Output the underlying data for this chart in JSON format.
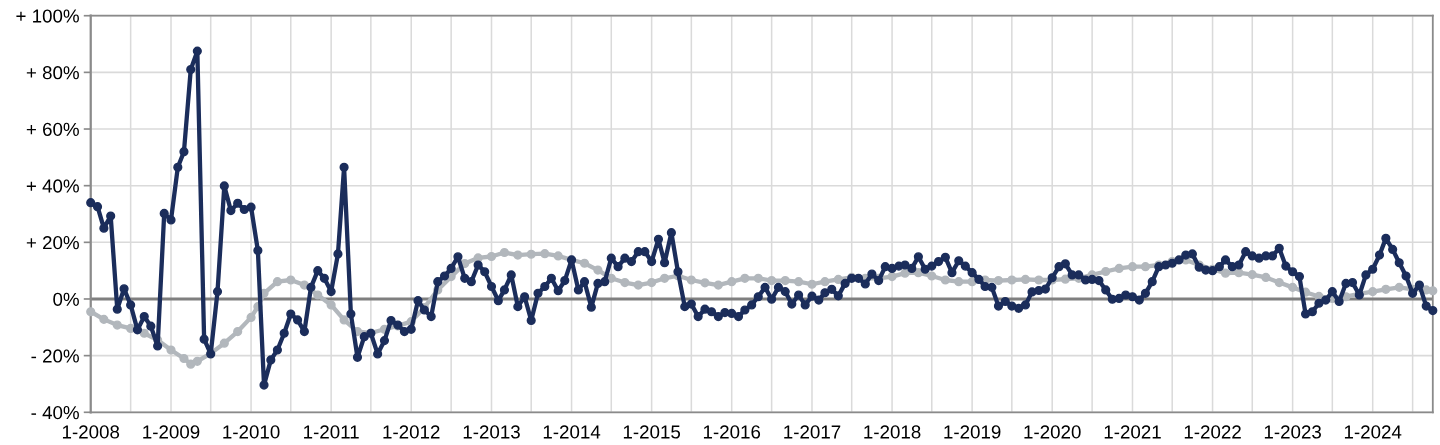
{
  "chart_data": {
    "type": "line",
    "x": [
      "2008-01",
      "2008-02",
      "2008-03",
      "2008-04",
      "2008-05",
      "2008-06",
      "2008-07",
      "2008-08",
      "2008-09",
      "2008-10",
      "2008-11",
      "2008-12",
      "2009-01",
      "2009-02",
      "2009-03",
      "2009-04",
      "2009-05",
      "2009-06",
      "2009-07",
      "2009-08",
      "2009-09",
      "2009-10",
      "2009-11",
      "2009-12",
      "2010-01",
      "2010-02",
      "2010-03",
      "2010-04",
      "2010-05",
      "2010-06",
      "2010-07",
      "2010-08",
      "2010-09",
      "2010-10",
      "2010-11",
      "2010-12",
      "2011-01",
      "2011-02",
      "2011-03",
      "2011-04",
      "2011-05",
      "2011-06",
      "2011-07",
      "2011-08",
      "2011-09",
      "2011-10",
      "2011-11",
      "2011-12",
      "2012-01",
      "2012-02",
      "2012-03",
      "2012-04",
      "2012-05",
      "2012-06",
      "2012-07",
      "2012-08",
      "2012-09",
      "2012-10",
      "2012-11",
      "2012-12",
      "2013-01",
      "2013-02",
      "2013-03",
      "2013-04",
      "2013-05",
      "2013-06",
      "2013-07",
      "2013-08",
      "2013-09",
      "2013-10",
      "2013-11",
      "2013-12",
      "2014-01",
      "2014-02",
      "2014-03",
      "2014-04",
      "2014-05",
      "2014-06",
      "2014-07",
      "2014-08",
      "2014-09",
      "2014-10",
      "2014-11",
      "2014-12",
      "2015-01",
      "2015-02",
      "2015-03",
      "2015-04",
      "2015-05",
      "2015-06",
      "2015-07",
      "2015-08",
      "2015-09",
      "2015-10",
      "2015-11",
      "2015-12",
      "2016-01",
      "2016-02",
      "2016-03",
      "2016-04",
      "2016-05",
      "2016-06",
      "2016-07",
      "2016-08",
      "2016-09",
      "2016-10",
      "2016-11",
      "2016-12",
      "2017-01",
      "2017-02",
      "2017-03",
      "2017-04",
      "2017-05",
      "2017-06",
      "2017-07",
      "2017-08",
      "2017-09",
      "2017-10",
      "2017-11",
      "2017-12",
      "2018-01",
      "2018-02",
      "2018-03",
      "2018-04",
      "2018-05",
      "2018-06",
      "2018-07",
      "2018-08",
      "2018-09",
      "2018-10",
      "2018-11",
      "2018-12",
      "2019-01",
      "2019-02",
      "2019-03",
      "2019-04",
      "2019-05",
      "2019-06",
      "2019-07",
      "2019-08",
      "2019-09",
      "2019-10",
      "2019-11",
      "2019-12",
      "2020-01",
      "2020-02",
      "2020-03",
      "2020-04",
      "2020-05",
      "2020-06",
      "2020-07",
      "2020-08",
      "2020-09",
      "2020-10",
      "2020-11",
      "2020-12",
      "2021-01",
      "2021-02",
      "2021-03",
      "2021-04",
      "2021-05",
      "2021-06",
      "2021-07",
      "2021-08",
      "2021-09",
      "2021-10",
      "2021-11",
      "2021-12",
      "2022-01",
      "2022-02",
      "2022-03",
      "2022-04",
      "2022-05",
      "2022-06",
      "2022-07",
      "2022-08",
      "2022-09",
      "2022-10",
      "2022-11",
      "2022-12",
      "2023-01",
      "2023-02",
      "2023-03",
      "2023-04",
      "2023-05",
      "2023-06",
      "2023-07",
      "2023-08",
      "2023-09",
      "2023-10",
      "2023-11",
      "2023-12",
      "2024-01",
      "2024-02",
      "2024-03",
      "2024-04",
      "2024-05",
      "2024-06",
      "2024-07",
      "2024-08",
      "2024-09",
      "2024-10"
    ],
    "series": [
      {
        "color": "#b2b7bc",
        "x": [
          "2008-01",
          "2008-03",
          "2008-05",
          "2008-07",
          "2008-09",
          "2008-11",
          "2009-01",
          "2009-03",
          "2009-04",
          "2009-05",
          "2009-07",
          "2009-09",
          "2009-11",
          "2010-01",
          "2010-02",
          "2010-03",
          "2010-05",
          "2010-07",
          "2010-09",
          "2010-11",
          "2011-01",
          "2011-03",
          "2011-05",
          "2011-07",
          "2011-09",
          "2011-11",
          "2012-01",
          "2012-03",
          "2012-05",
          "2012-07",
          "2012-09",
          "2012-11",
          "2013-01",
          "2013-03",
          "2013-05",
          "2013-07",
          "2013-09",
          "2013-11",
          "2014-01",
          "2014-03",
          "2014-05",
          "2014-07",
          "2014-09",
          "2014-11",
          "2015-01",
          "2015-03",
          "2015-05",
          "2015-07",
          "2015-09",
          "2015-11",
          "2016-01",
          "2016-03",
          "2016-05",
          "2016-07",
          "2016-09",
          "2016-11",
          "2017-01",
          "2017-03",
          "2017-05",
          "2017-07",
          "2017-09",
          "2017-11",
          "2018-01",
          "2018-03",
          "2018-05",
          "2018-07",
          "2018-09",
          "2018-11",
          "2019-01",
          "2019-03",
          "2019-05",
          "2019-07",
          "2019-09",
          "2019-11",
          "2020-01",
          "2020-03",
          "2020-05",
          "2020-07",
          "2020-09",
          "2020-11",
          "2021-01",
          "2021-03",
          "2021-05",
          "2021-07",
          "2021-09",
          "2021-11",
          "2022-01",
          "2022-03",
          "2022-05",
          "2022-07",
          "2022-09",
          "2022-11",
          "2023-01",
          "2023-03",
          "2023-05",
          "2023-07",
          "2023-09",
          "2023-11",
          "2024-01",
          "2024-03",
          "2024-05",
          "2024-07",
          "2024-09",
          "2024-10"
        ],
        "values": [
          -4.5,
          -7.2,
          -9.2,
          -10.4,
          -12.1,
          -14.5,
          -18,
          -21,
          -23,
          -22,
          -19.2,
          -15.6,
          -11.5,
          -6.5,
          -2.7,
          2.0,
          6.1,
          6.7,
          4.9,
          1.4,
          -2.1,
          -7.4,
          -11.5,
          -12,
          -10.7,
          -9.5,
          -8.0,
          -3.0,
          3.2,
          7.9,
          12.5,
          14.5,
          15.0,
          16.4,
          15.5,
          15.8,
          16.0,
          15.2,
          13.8,
          12.6,
          10.2,
          7.3,
          5.8,
          4.9,
          5.8,
          7.3,
          8.2,
          6.7,
          5.7,
          4.9,
          6.1,
          7.3,
          7.3,
          6.5,
          6.5,
          6.1,
          5.2,
          6.1,
          6.9,
          7.6,
          7.3,
          7.3,
          7.9,
          9.1,
          9.3,
          8.1,
          6.7,
          6.1,
          6.1,
          6.7,
          6.5,
          6.7,
          6.9,
          6.7,
          6.7,
          7.0,
          7.3,
          8.5,
          9.7,
          10.8,
          11.4,
          11.4,
          12.0,
          13.2,
          13.8,
          12.0,
          10.5,
          9.1,
          9.3,
          8.6,
          7.6,
          5.8,
          4.1,
          2.4,
          0.9,
          0.2,
          0.8,
          1.8,
          2.6,
          3.4,
          4.1,
          3.4,
          3.2,
          2.9
        ]
      },
      {
        "color": "#1b2d5b",
        "values": [
          34.0,
          32.6,
          25.0,
          29.3,
          -3.6,
          3.6,
          -2.1,
          -10.9,
          -6.2,
          -9.6,
          -16.6,
          30.2,
          27.9,
          46.5,
          52.0,
          81.0,
          87.5,
          -14.2,
          -19.4,
          2.6,
          39.9,
          31.2,
          33.8,
          31.6,
          32.4,
          17.1,
          -30.4,
          -21.5,
          -18.0,
          -12.1,
          -5.3,
          -7.4,
          -11.5,
          4.1,
          10.0,
          7.3,
          2.6,
          15.9,
          46.5,
          -5.3,
          -20.6,
          -13.3,
          -12.1,
          -19.4,
          -14.7,
          -7.6,
          -9.2,
          -11.5,
          -10.7,
          -0.6,
          -3.9,
          -6.2,
          6.1,
          8.1,
          10.8,
          14.9,
          7.3,
          6.1,
          12.0,
          9.6,
          4.4,
          -0.6,
          3.2,
          8.5,
          -2.7,
          0.8,
          -7.6,
          2.0,
          4.4,
          7.3,
          2.9,
          6.5,
          13.8,
          3.2,
          6.1,
          -2.9,
          5.5,
          6.1,
          14.4,
          11.4,
          14.4,
          13.2,
          16.7,
          16.7,
          13.2,
          21.1,
          12.8,
          23.4,
          9.6,
          -2.7,
          -1.8,
          -6.2,
          -3.6,
          -4.5,
          -6.2,
          -4.8,
          -5.1,
          -6.2,
          -3.9,
          -2.1,
          0.8,
          4.1,
          -0.1,
          4.1,
          2.6,
          -1.8,
          1.4,
          -2.1,
          1.0,
          -0.4,
          2.2,
          3.4,
          1.1,
          5.5,
          7.3,
          7.3,
          5.3,
          8.8,
          6.5,
          11.4,
          10.8,
          11.6,
          12.0,
          10.8,
          14.9,
          10.5,
          11.6,
          13.2,
          14.7,
          9.3,
          13.5,
          11.6,
          9.3,
          6.9,
          4.4,
          4.1,
          -2.5,
          -0.9,
          -2.5,
          -3.3,
          -2.1,
          2.5,
          3.0,
          3.5,
          7.5,
          11.4,
          12.4,
          8.5,
          8.5,
          6.7,
          6.9,
          6.5,
          3.2,
          -0.1,
          0.2,
          1.4,
          0.8,
          -0.4,
          2.0,
          6.1,
          11.4,
          12.0,
          12.6,
          13.8,
          15.5,
          15.9,
          11.2,
          10.2,
          10.0,
          11.4,
          13.8,
          11.4,
          12.0,
          16.7,
          15.2,
          14.4,
          15.2,
          15.2,
          17.9,
          11.6,
          9.6,
          7.9,
          -5.3,
          -4.5,
          -1.5,
          -0.4,
          2.6,
          -0.9,
          5.5,
          5.8,
          1.4,
          8.5,
          10.5,
          15.5,
          21.4,
          17.5,
          12.8,
          8.1,
          2.0,
          4.9,
          -2.5,
          -4.1
        ]
      }
    ],
    "xlim": [
      "2008-01",
      "2024-10"
    ],
    "xticks": [
      {
        "value": "2008-01",
        "label": "1-2008"
      },
      {
        "value": "2008-07",
        "label": null
      },
      {
        "value": "2009-01",
        "label": "1-2009"
      },
      {
        "value": "2009-07",
        "label": null
      },
      {
        "value": "2010-01",
        "label": "1-2010"
      },
      {
        "value": "2010-07",
        "label": null
      },
      {
        "value": "2011-01",
        "label": "1-2011"
      },
      {
        "value": "2011-07",
        "label": null
      },
      {
        "value": "2012-01",
        "label": "1-2012"
      },
      {
        "value": "2012-07",
        "label": null
      },
      {
        "value": "2013-01",
        "label": "1-2013"
      },
      {
        "value": "2013-07",
        "label": null
      },
      {
        "value": "2014-01",
        "label": "1-2014"
      },
      {
        "value": "2014-07",
        "label": null
      },
      {
        "value": "2015-01",
        "label": "1-2015"
      },
      {
        "value": "2015-07",
        "label": null
      },
      {
        "value": "2016-01",
        "label": "1-2016"
      },
      {
        "value": "2016-07",
        "label": null
      },
      {
        "value": "2017-01",
        "label": "1-2017"
      },
      {
        "value": "2017-07",
        "label": null
      },
      {
        "value": "2018-01",
        "label": "1-2018"
      },
      {
        "value": "2018-07",
        "label": null
      },
      {
        "value": "2019-01",
        "label": "1-2019"
      },
      {
        "value": "2019-07",
        "label": null
      },
      {
        "value": "2020-01",
        "label": "1-2020"
      },
      {
        "value": "2020-07",
        "label": null
      },
      {
        "value": "2021-01",
        "label": "1-2021"
      },
      {
        "value": "2021-07",
        "label": null
      },
      {
        "value": "2022-01",
        "label": "1-2022"
      },
      {
        "value": "2022-07",
        "label": null
      },
      {
        "value": "2023-01",
        "label": "1-2023"
      },
      {
        "value": "2023-07",
        "label": null
      },
      {
        "value": "2024-01",
        "label": "1-2024"
      },
      {
        "value": "2024-07",
        "label": null
      }
    ],
    "ylim": [
      -40,
      100
    ],
    "yticks": [
      {
        "value": -40,
        "label": "- 40%"
      },
      {
        "value": -20,
        "label": "- 20%"
      },
      {
        "value": 0,
        "label": "0%"
      },
      {
        "value": 20,
        "label": "+ 20%"
      },
      {
        "value": 40,
        "label": "+ 40%"
      },
      {
        "value": 60,
        "label": "+ 60%"
      },
      {
        "value": 80,
        "label": "+ 80%"
      },
      {
        "value": 100,
        "label": "+ 100%"
      }
    ],
    "ref_lines": [
      {
        "axis": "y",
        "value": 0,
        "color": "#7f7f7f",
        "line_style": "solid"
      }
    ],
    "grid": true,
    "marker": "circle",
    "line_style": "solid"
  }
}
